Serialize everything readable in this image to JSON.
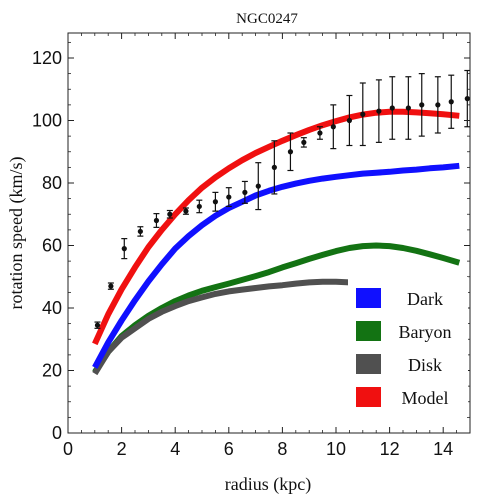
{
  "chart_data": {
    "type": "line",
    "title": "NGC0247",
    "xlabel": "radius (kpc)",
    "ylabel": "rotation speed (km/s)",
    "xlim": [
      0,
      15
    ],
    "ylim": [
      0,
      128
    ],
    "x_ticks": [
      0,
      2,
      4,
      6,
      8,
      10,
      12,
      14
    ],
    "y_ticks": [
      0,
      20,
      40,
      60,
      80,
      100,
      120
    ],
    "legend_position": "bottom-right",
    "series": [
      {
        "name": "Dark",
        "color": "#1010ff",
        "x": [
          1.0,
          1.5,
          2,
          2.5,
          3,
          3.5,
          4,
          4.5,
          5,
          5.5,
          6,
          6.5,
          7,
          7.5,
          8,
          8.5,
          9,
          9.5,
          10,
          10.5,
          11,
          11.5,
          12,
          12.5,
          13,
          13.5,
          14,
          14.6
        ],
        "y": [
          21,
          29,
          36,
          42.5,
          48.5,
          54,
          59,
          63,
          66.5,
          69.5,
          72,
          74,
          76,
          77.5,
          78.8,
          79.8,
          80.7,
          81.4,
          82,
          82.5,
          83,
          83.3,
          83.6,
          84,
          84.3,
          84.7,
          85,
          85.5
        ]
      },
      {
        "name": "Baryon",
        "color": "#137313",
        "x": [
          1.0,
          1.5,
          2,
          2.5,
          3,
          3.5,
          4,
          4.5,
          5,
          5.5,
          6,
          6.5,
          7,
          7.5,
          8,
          8.5,
          9,
          9.5,
          10,
          10.5,
          11,
          11.5,
          12,
          12.5,
          13,
          13.5,
          14,
          14.6
        ],
        "y": [
          19.5,
          26,
          31,
          34.5,
          37.5,
          40,
          42.2,
          44,
          45.5,
          46.7,
          47.8,
          49,
          50.2,
          51.5,
          53,
          54.3,
          55.7,
          57,
          58.2,
          59.2,
          59.8,
          60,
          59.8,
          59.2,
          58.3,
          57.2,
          56,
          54.5
        ]
      },
      {
        "name": "Disk",
        "color": "#505050",
        "x": [
          1.0,
          1.5,
          2,
          2.5,
          3,
          3.5,
          4,
          4.5,
          5,
          5.5,
          6,
          6.5,
          7,
          7.5,
          8,
          8.5,
          9,
          9.5,
          10,
          10.5,
          11,
          11.5,
          12,
          12.5,
          13,
          13.5,
          14,
          14.6
        ],
        "y": [
          19,
          26,
          30.5,
          33.5,
          36.5,
          38.8,
          40.6,
          42.2,
          43.4,
          44.5,
          45.3,
          45.9,
          46.4,
          46.9,
          47.3,
          47.8,
          48.2,
          48.4,
          48.4,
          48.2,
          47.8,
          47.4,
          46.8,
          46.2,
          45.6,
          45,
          44.5,
          44
        ]
      },
      {
        "name": "Model",
        "color": "#f01010",
        "x": [
          1.0,
          1.5,
          2,
          2.5,
          3,
          3.5,
          4,
          4.5,
          5,
          5.5,
          6,
          6.5,
          7,
          7.5,
          8,
          8.5,
          9,
          9.5,
          10,
          10.5,
          11,
          11.5,
          12,
          12.5,
          13,
          13.5,
          14,
          14.6
        ],
        "y": [
          28.5,
          38,
          46,
          53,
          59.5,
          65,
          70,
          74.5,
          78.5,
          81.8,
          84.7,
          87.3,
          89.6,
          91.6,
          93.5,
          95.3,
          97,
          98.5,
          99.8,
          101,
          101.9,
          102.5,
          102.8,
          102.8,
          102.6,
          102.3,
          102,
          101.5
        ]
      }
    ],
    "observed": {
      "name": "data",
      "color": "#111111",
      "x": [
        1.1,
        1.6,
        2.1,
        2.7,
        3.3,
        3.8,
        4.4,
        4.9,
        5.5,
        6.0,
        6.6,
        7.1,
        7.7,
        8.3,
        8.8,
        9.4,
        9.9,
        10.5,
        11.0,
        11.6,
        12.1,
        12.7,
        13.2,
        13.8,
        14.3,
        14.9
      ],
      "y": [
        34.5,
        47,
        59,
        64.5,
        68,
        70,
        71,
        72.5,
        74,
        75.5,
        77,
        79,
        85,
        90,
        93,
        96,
        98,
        100,
        102,
        103,
        104,
        104,
        105,
        105,
        106,
        107
      ],
      "err": [
        1,
        1,
        3.2,
        1.5,
        2.2,
        1.2,
        1,
        2,
        3,
        3,
        3.5,
        7.5,
        8.5,
        6,
        1.5,
        2,
        7,
        8,
        10,
        10,
        10,
        10,
        10,
        9,
        8.5,
        9
      ]
    }
  }
}
